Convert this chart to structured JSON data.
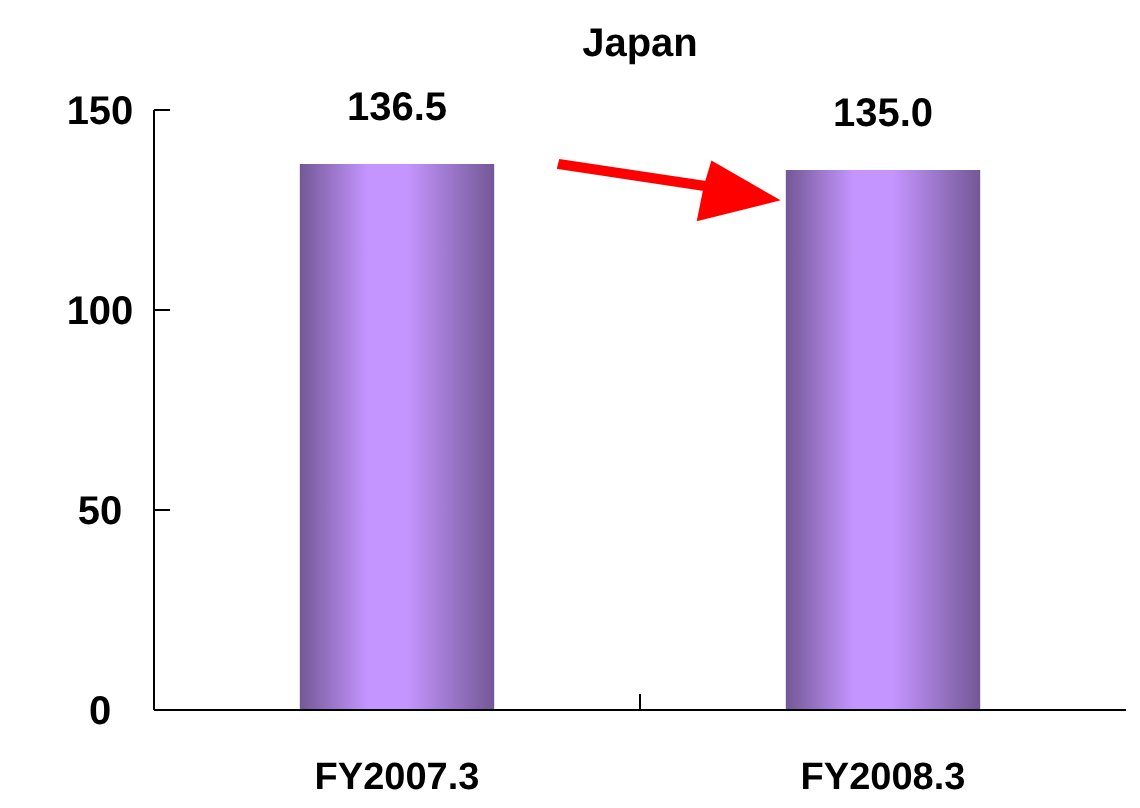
{
  "chart_data": {
    "type": "bar",
    "title": "Japan",
    "categories": [
      "FY2007.3",
      "FY2008.3"
    ],
    "values": [
      136.5,
      135.0
    ],
    "color": "#a57dd8",
    "value_labels": [
      "136.5",
      "135.0"
    ],
    "ylim": [
      0,
      150
    ],
    "yticks": [
      0,
      50,
      100,
      150
    ]
  }
}
